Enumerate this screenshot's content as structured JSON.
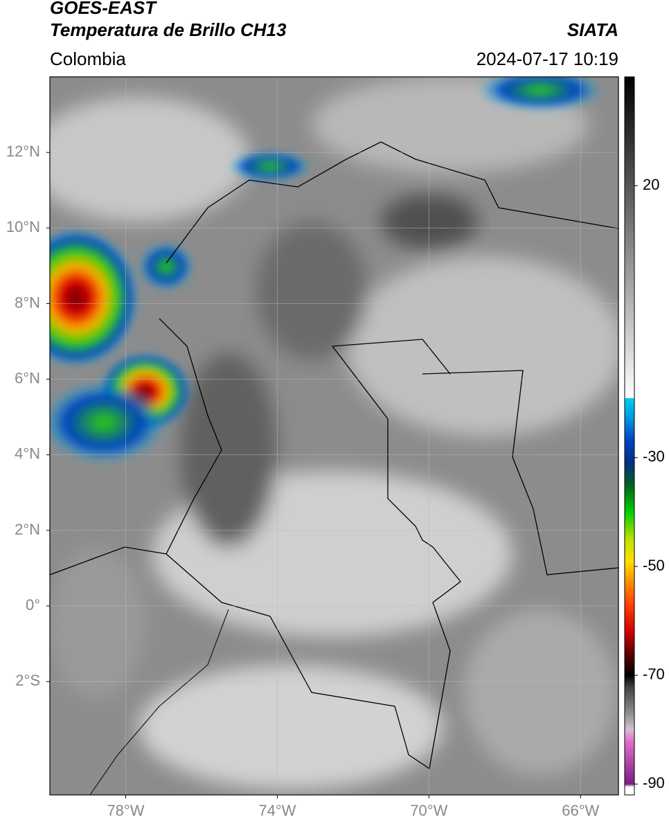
{
  "header": {
    "title": "GOES-EAST",
    "subtitle": "Temperatura de Brillo CH13",
    "source": "SIATA",
    "region": "Colombia",
    "datetime": "2024-07-17 10:19"
  },
  "map": {
    "xlim": [
      -80,
      -65
    ],
    "ylim": [
      -5,
      14
    ],
    "xticks": [
      {
        "value": -78,
        "label": "78°W"
      },
      {
        "value": -74,
        "label": "74°W"
      },
      {
        "value": -70,
        "label": "70°W"
      },
      {
        "value": -66,
        "label": "66°W"
      }
    ],
    "yticks": [
      {
        "value": 12,
        "label": "12°N"
      },
      {
        "value": 10,
        "label": "10°N"
      },
      {
        "value": 8,
        "label": "8°N"
      },
      {
        "value": 6,
        "label": "6°N"
      },
      {
        "value": 4,
        "label": "4°N"
      },
      {
        "value": 2,
        "label": "2°N"
      },
      {
        "value": 0,
        "label": "0°"
      },
      {
        "value": -2,
        "label": "2°S"
      }
    ],
    "grid": true
  },
  "colorbar": {
    "clim": [
      -92,
      40
    ],
    "ticks": [
      20,
      -30,
      -50,
      -70,
      -90
    ],
    "colormap": [
      {
        "value": -92,
        "color": "#ffffff"
      },
      {
        "value": -90.5,
        "color": "#ffffff"
      },
      {
        "value": -90,
        "color": "#7a1f80"
      },
      {
        "value": -82,
        "color": "#e070d0"
      },
      {
        "value": -80,
        "color": "#d8c0d0"
      },
      {
        "value": -77,
        "color": "#909090"
      },
      {
        "value": -72,
        "color": "#404040"
      },
      {
        "value": -70,
        "color": "#000000"
      },
      {
        "value": -66,
        "color": "#600000"
      },
      {
        "value": -62,
        "color": "#d00000"
      },
      {
        "value": -57,
        "color": "#ff4000"
      },
      {
        "value": -52,
        "color": "#ffa000"
      },
      {
        "value": -49,
        "color": "#ffe000"
      },
      {
        "value": -45,
        "color": "#c0e000"
      },
      {
        "value": -40,
        "color": "#00d000"
      },
      {
        "value": -35,
        "color": "#006020"
      },
      {
        "value": -31,
        "color": "#003080"
      },
      {
        "value": -27,
        "color": "#0040c0"
      },
      {
        "value": -23,
        "color": "#0090e0"
      },
      {
        "value": -19,
        "color": "#00d0f0"
      },
      {
        "value": -19,
        "color": "#ffffff"
      },
      {
        "value": 40,
        "color": "#000000"
      }
    ]
  }
}
